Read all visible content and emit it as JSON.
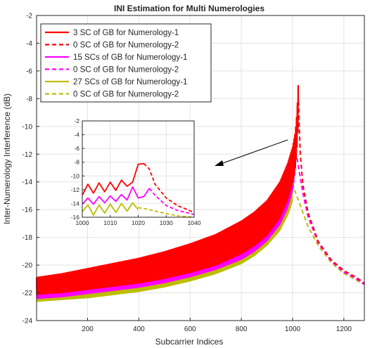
{
  "chart_data": {
    "type": "line",
    "title": "INI Estimation for Multi Numerologies",
    "xlabel": "Subcarrier Indices",
    "ylabel": "Inter-Numerology Interference (dB)",
    "xlim": [
      1,
      1280
    ],
    "ylim": [
      -24,
      -2
    ],
    "xticks": [
      200,
      400,
      600,
      800,
      1000,
      1200
    ],
    "yticks": [
      -24,
      -22,
      -20,
      -18,
      -16,
      -14,
      -12,
      -10,
      -8,
      -6,
      -4,
      -2
    ],
    "grid": true,
    "legend_position": "top-left",
    "series": [
      {
        "name": "3 SC of GB for Numerology-1",
        "color": "#ff0000",
        "style": "solid",
        "x": [
          1,
          100,
          200,
          300,
          400,
          500,
          600,
          700,
          800,
          850,
          900,
          950,
          980,
          1000,
          1010,
          1015,
          1020,
          1022
        ],
        "y": [
          -21.5,
          -21.3,
          -21.0,
          -20.7,
          -20.4,
          -20.0,
          -19.5,
          -18.9,
          -18.0,
          -17.4,
          -16.6,
          -15.3,
          -14.0,
          -12.8,
          -11.8,
          -10.8,
          -9.2,
          -8.3
        ],
        "osc": 0.6
      },
      {
        "name": "0 SC of GB for Numerology-2",
        "color": "#ff0000",
        "style": "dashed",
        "x": [
          1023,
          1024,
          1025,
          1030,
          1040,
          1060,
          1100,
          1150,
          1200,
          1250,
          1280
        ],
        "y": [
          -8.2,
          -8.6,
          -9.5,
          -12.0,
          -14.2,
          -16.2,
          -18.3,
          -19.6,
          -20.4,
          -20.9,
          -21.3
        ],
        "osc": 0
      },
      {
        "name": "15 SCs of GB for Numerology-1",
        "color": "#ff00ff",
        "style": "solid",
        "x": [
          1,
          100,
          200,
          300,
          400,
          500,
          600,
          700,
          800,
          850,
          900,
          950,
          980,
          1000,
          1005,
          1010
        ],
        "y": [
          -21.8,
          -21.6,
          -21.3,
          -21.0,
          -20.7,
          -20.3,
          -19.8,
          -19.2,
          -18.4,
          -17.8,
          -17.0,
          -15.8,
          -14.6,
          -13.3,
          -12.6,
          -11.8
        ],
        "osc": 0.6
      },
      {
        "name": "0 SC of GB for Numerology-2",
        "color": "#ff00ff",
        "style": "dashed",
        "x": [
          1011,
          1015,
          1020,
          1030,
          1040,
          1060,
          1100,
          1150,
          1200,
          1250,
          1280
        ],
        "y": [
          -11.8,
          -12.1,
          -12.6,
          -13.7,
          -14.8,
          -16.5,
          -18.4,
          -19.7,
          -20.5,
          -21.0,
          -21.4
        ],
        "osc": 0
      },
      {
        "name": "27 SCs of GB for Numerology-1",
        "color": "#bdbd00",
        "style": "solid",
        "x": [
          1,
          100,
          200,
          300,
          400,
          500,
          600,
          700,
          800,
          850,
          900,
          950,
          980,
          990,
          998
        ],
        "y": [
          -22.0,
          -21.8,
          -21.6,
          -21.3,
          -21.0,
          -20.6,
          -20.1,
          -19.5,
          -18.7,
          -18.1,
          -17.3,
          -16.2,
          -15.1,
          -14.6,
          -14.1
        ],
        "osc": 0.6
      },
      {
        "name": "0 SC of GB for Numerology-2",
        "color": "#bdbd00",
        "style": "dashed",
        "x": [
          999,
          1005,
          1010,
          1020,
          1030,
          1040,
          1060,
          1100,
          1150,
          1200,
          1250,
          1280
        ],
        "y": [
          -14.1,
          -14.4,
          -14.7,
          -15.2,
          -15.7,
          -16.2,
          -17.2,
          -18.6,
          -19.8,
          -20.6,
          -21.1,
          -21.4
        ],
        "osc": 0
      }
    ],
    "inset": {
      "xlim": [
        1000,
        1040
      ],
      "ylim": [
        -16,
        -2
      ],
      "xticks": [
        1000,
        1010,
        1020,
        1030,
        1040
      ],
      "yticks": [
        -16,
        -14,
        -12,
        -10,
        -8,
        -6,
        -4,
        -2
      ],
      "series": [
        {
          "color": "#ff0000",
          "style": "solid",
          "x": [
            1000,
            1002,
            1004,
            1006,
            1008,
            1010,
            1012,
            1014,
            1016,
            1018,
            1020,
            1022
          ],
          "y": [
            -12.8,
            -11.2,
            -12.5,
            -11.0,
            -12.3,
            -10.9,
            -12.1,
            -10.6,
            -11.5,
            -10.9,
            -8.3,
            -8.2
          ]
        },
        {
          "color": "#ff0000",
          "style": "dashed",
          "x": [
            1022,
            1024,
            1026,
            1030,
            1034,
            1040
          ],
          "y": [
            -8.2,
            -9.0,
            -11.2,
            -13.2,
            -14.3,
            -15.3
          ]
        },
        {
          "color": "#ff00ff",
          "style": "solid",
          "x": [
            1000,
            1002,
            1004,
            1006,
            1008,
            1010,
            1012,
            1014,
            1016,
            1018,
            1020,
            1022,
            1024
          ],
          "y": [
            -14.1,
            -13.2,
            -14.1,
            -13.0,
            -13.9,
            -12.9,
            -13.7,
            -12.7,
            -13.5,
            -11.6,
            -13.2,
            -13.0,
            -11.8
          ]
        },
        {
          "color": "#ff00ff",
          "style": "dashed",
          "x": [
            1024,
            1026,
            1030,
            1034,
            1040
          ],
          "y": [
            -11.8,
            -12.8,
            -14.3,
            -15.0,
            -15.6
          ]
        },
        {
          "color": "#bdbd00",
          "style": "solid",
          "x": [
            1000,
            1002,
            1004,
            1006,
            1008,
            1010,
            1012,
            1014,
            1016,
            1018,
            1020
          ],
          "y": [
            -15.2,
            -14.2,
            -15.7,
            -14.2,
            -15.4,
            -14.1,
            -15.3,
            -14.0,
            -15.1,
            -13.9,
            -14.9
          ]
        },
        {
          "color": "#bdbd00",
          "style": "dashed",
          "x": [
            1020,
            1024,
            1028,
            1034,
            1040
          ],
          "y": [
            -14.6,
            -14.9,
            -15.3,
            -15.8,
            -16.0
          ]
        }
      ]
    }
  }
}
